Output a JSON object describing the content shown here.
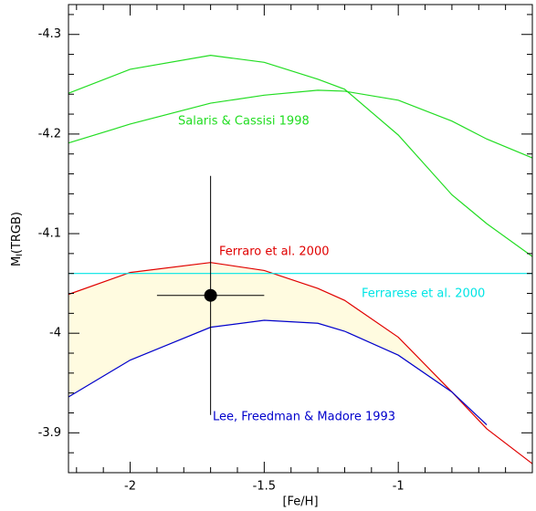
{
  "chart_data": {
    "type": "line",
    "xlabel": "[Fe/H]",
    "ylabel": [
      "M",
      "I",
      "(TRGB)"
    ],
    "x": [
      -2.23,
      -2.0,
      -1.7,
      -1.5,
      -1.3,
      -1.2,
      -1.0,
      -0.8,
      -0.67,
      -0.5
    ],
    "series": [
      {
        "name": "Salaris & Cassisi 1998",
        "color": "#22dd22",
        "values": [
          -4.241,
          -4.265,
          -4.279,
          -4.272,
          -4.255,
          -4.245,
          -4.199,
          -4.139,
          -4.11,
          -4.077
        ]
      },
      {
        "color": "#22dd22",
        "values": [
          -4.191,
          -4.21,
          -4.231,
          -4.239,
          -4.244,
          -4.243,
          -4.234,
          -4.213,
          -4.195,
          -4.176
        ]
      },
      {
        "name": "Ferraro et al. 2000",
        "color": "#e00000",
        "values": [
          -4.039,
          -4.061,
          -4.071,
          -4.063,
          -4.045,
          -4.033,
          -3.996,
          -3.941,
          -3.904,
          -3.869
        ]
      },
      {
        "name": "Lee, Freedman & Madore 1993",
        "color": "#0000cc",
        "values": [
          -3.936,
          -3.973,
          -4.006,
          -4.013,
          -4.01,
          -4.002,
          -3.978,
          -3.941,
          -3.908,
          null
        ]
      },
      {
        "name": "Ferrarese et al. 2000",
        "color": "#00e5e5",
        "values": [
          -4.06,
          -4.06,
          -4.06,
          -4.06,
          -4.06,
          -4.06,
          -4.06,
          -4.06,
          -4.06,
          -4.06
        ]
      }
    ],
    "fill_between": {
      "series": [
        2,
        3
      ],
      "color": "#fffbe0"
    },
    "point": {
      "x": -1.7,
      "y": -4.038,
      "xerr": 0.2,
      "yerr": 0.12,
      "color": "#000000"
    },
    "xlim": [
      -2.23,
      -0.5
    ],
    "ylim": [
      -3.86,
      -4.33
    ],
    "xticks": [
      -2,
      -1.5,
      -1
    ],
    "yticks": [
      -4.3,
      -4.2,
      -4.1,
      -4,
      -3.9
    ],
    "xminor": [
      -2.2,
      -2.1,
      -1.9,
      -1.8,
      -1.7,
      -1.6,
      -1.4,
      -1.3,
      -1.2,
      -1.1,
      -0.9,
      -0.8,
      -0.7,
      -0.6
    ],
    "yminor": [
      -4.32,
      -4.28,
      -4.26,
      -4.24,
      -4.22,
      -4.18,
      -4.16,
      -4.14,
      -4.12,
      -4.08,
      -4.06,
      -4.04,
      -4.02,
      -3.98,
      -3.96,
      -3.94,
      -3.92,
      -3.88,
      -3.86
    ]
  }
}
